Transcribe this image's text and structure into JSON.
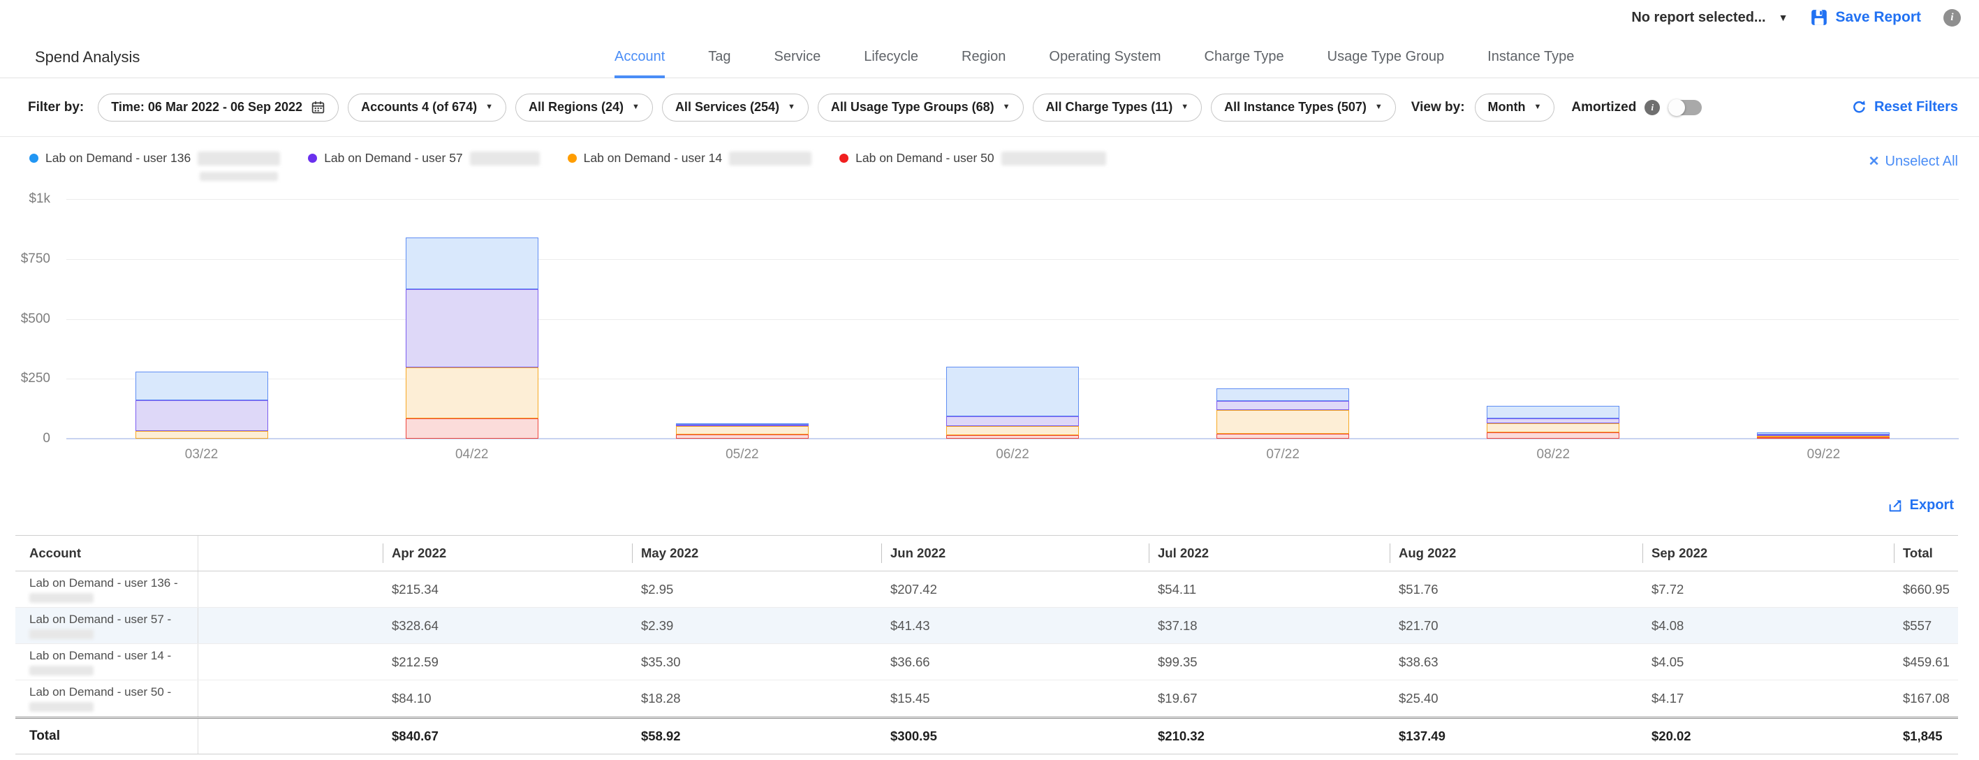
{
  "topbar": {
    "report_selector": "No report selected...",
    "save_report": "Save Report"
  },
  "header": {
    "title": "Spend Analysis",
    "tabs": [
      {
        "label": "Account",
        "active": true
      },
      {
        "label": "Tag",
        "active": false
      },
      {
        "label": "Service",
        "active": false
      },
      {
        "label": "Lifecycle",
        "active": false
      },
      {
        "label": "Region",
        "active": false
      },
      {
        "label": "Operating System",
        "active": false
      },
      {
        "label": "Charge Type",
        "active": false
      },
      {
        "label": "Usage Type Group",
        "active": false
      },
      {
        "label": "Instance Type",
        "active": false
      }
    ]
  },
  "filters": {
    "label": "Filter by:",
    "pills": [
      {
        "label": "Time: 06 Mar 2022 - 06 Sep 2022",
        "icon": "calendar"
      },
      {
        "label": "Accounts 4 (of 674)",
        "icon": "caret"
      },
      {
        "label": "All Regions (24)",
        "icon": "caret"
      },
      {
        "label": "All Services (254)",
        "icon": "caret"
      },
      {
        "label": "All Usage Type Groups (68)",
        "icon": "caret"
      },
      {
        "label": "All Charge Types (11)",
        "icon": "caret"
      },
      {
        "label": "All Instance Types (507)",
        "icon": "caret"
      }
    ],
    "view_by_label": "View by:",
    "view_by_value": "Month",
    "amortized_label": "Amortized",
    "amortized_on": false,
    "reset_label": "Reset Filters"
  },
  "legend": {
    "items": [
      {
        "label": "Lab on Demand - user 136",
        "color": "#2196f3",
        "redact_width": 118
      },
      {
        "label": "Lab on Demand - user 57",
        "color": "#6a30ee",
        "redact_width": 100
      },
      {
        "label": "Lab on Demand - user 14",
        "color": "#ff9d00",
        "redact_width": 118
      },
      {
        "label": "Lab on Demand - user 50",
        "color": "#f01f1f",
        "redact_width": 150
      }
    ],
    "unselect_all": "Unselect All"
  },
  "chart_data": {
    "type": "bar",
    "stacked": true,
    "categories": [
      "03/22",
      "04/22",
      "05/22",
      "06/22",
      "07/22",
      "08/22",
      "09/22"
    ],
    "series": [
      {
        "name": "Lab on Demand - user 50",
        "fill": "#fbdcda",
        "border": "#ef453c",
        "values": [
          0,
          84.1,
          18.28,
          15.45,
          19.67,
          25.4,
          4.17
        ]
      },
      {
        "name": "Lab on Demand - user 14",
        "fill": "#fdeed6",
        "border": "#f7a823",
        "values": [
          33,
          212.59,
          35.3,
          36.66,
          99.35,
          38.63,
          4.05
        ]
      },
      {
        "name": "Lab on Demand - user 57",
        "fill": "#ded8f8",
        "border": "#7a5cf0",
        "values": [
          128,
          328.64,
          2.39,
          41.43,
          37.18,
          21.7,
          4.08
        ]
      },
      {
        "name": "Lab on Demand - user 136",
        "fill": "#d9e8fc",
        "border": "#5f8df3",
        "values": [
          120,
          215.34,
          2.95,
          207.42,
          54.11,
          51.76,
          7.72
        ]
      }
    ],
    "yticks": [
      "$1k",
      "$750",
      "$500",
      "$250",
      "0"
    ],
    "ylim": [
      0,
      1000
    ],
    "grid": true,
    "legend_position": "top-left"
  },
  "table": {
    "export_label": "Export",
    "columns": [
      "Account",
      "Apr 2022",
      "May 2022",
      "Jun 2022",
      "Jul 2022",
      "Aug 2022",
      "Sep 2022",
      "Total"
    ],
    "rows": [
      {
        "account": "Lab on Demand - user 136 -",
        "highlight": false,
        "values": [
          "$215.34",
          "$2.95",
          "$207.42",
          "$54.11",
          "$51.76",
          "$7.72",
          "$660.95"
        ]
      },
      {
        "account": "Lab on Demand - user 57 -",
        "highlight": true,
        "values": [
          "$328.64",
          "$2.39",
          "$41.43",
          "$37.18",
          "$21.70",
          "$4.08",
          "$557"
        ]
      },
      {
        "account": "Lab on Demand - user 14 -",
        "highlight": false,
        "values": [
          "$212.59",
          "$35.30",
          "$36.66",
          "$99.35",
          "$38.63",
          "$4.05",
          "$459.61"
        ]
      },
      {
        "account": "Lab on Demand - user 50 -",
        "highlight": false,
        "values": [
          "$84.10",
          "$18.28",
          "$15.45",
          "$19.67",
          "$25.40",
          "$4.17",
          "$167.08"
        ]
      }
    ],
    "total": {
      "label": "Total",
      "values": [
        "$840.67",
        "$58.92",
        "$300.95",
        "$210.32",
        "$137.49",
        "$20.02",
        "$1,845"
      ]
    }
  }
}
